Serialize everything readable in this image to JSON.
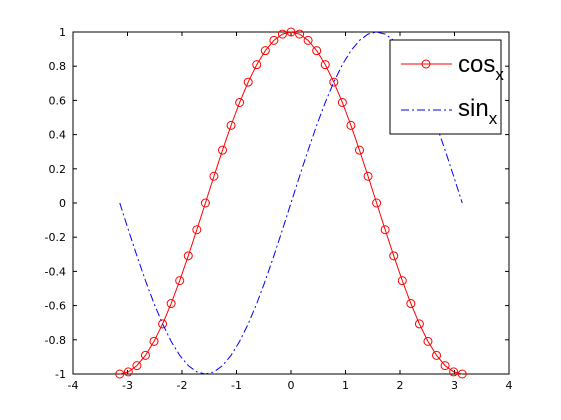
{
  "chart_data": {
    "type": "line",
    "title": "",
    "xlabel": "",
    "ylabel": "",
    "xlim": [
      -4,
      4
    ],
    "ylim": [
      -1,
      1
    ],
    "grid": false,
    "legend_placement": "top-right",
    "x_ticks": [
      -4,
      -3,
      -2,
      -1,
      0,
      1,
      2,
      3,
      4
    ],
    "y_ticks": [
      -1,
      -0.8,
      -0.6,
      -0.4,
      -0.2,
      0,
      0.2,
      0.4,
      0.6,
      0.8,
      1
    ],
    "x_tick_labels": [
      "-4",
      "-3",
      "-2",
      "-1",
      "0",
      "1",
      "2",
      "3",
      "4"
    ],
    "y_tick_labels": [
      "-1",
      "-0.8",
      "-0.6",
      "-0.4",
      "-0.2",
      "0",
      "0.2",
      "0.4",
      "0.6",
      "0.8",
      "1"
    ],
    "x_range": [
      -3.1416,
      3.1416
    ],
    "num_points": 41,
    "series": [
      {
        "name": "cos",
        "name_sub": "x",
        "function": "cos",
        "color": "#ff0000",
        "line_style": "solid",
        "marker": "circle"
      },
      {
        "name": "sin",
        "name_sub": "x",
        "function": "sin",
        "color": "#0000ff",
        "line_style": "dash-dot",
        "marker": "none"
      }
    ]
  }
}
